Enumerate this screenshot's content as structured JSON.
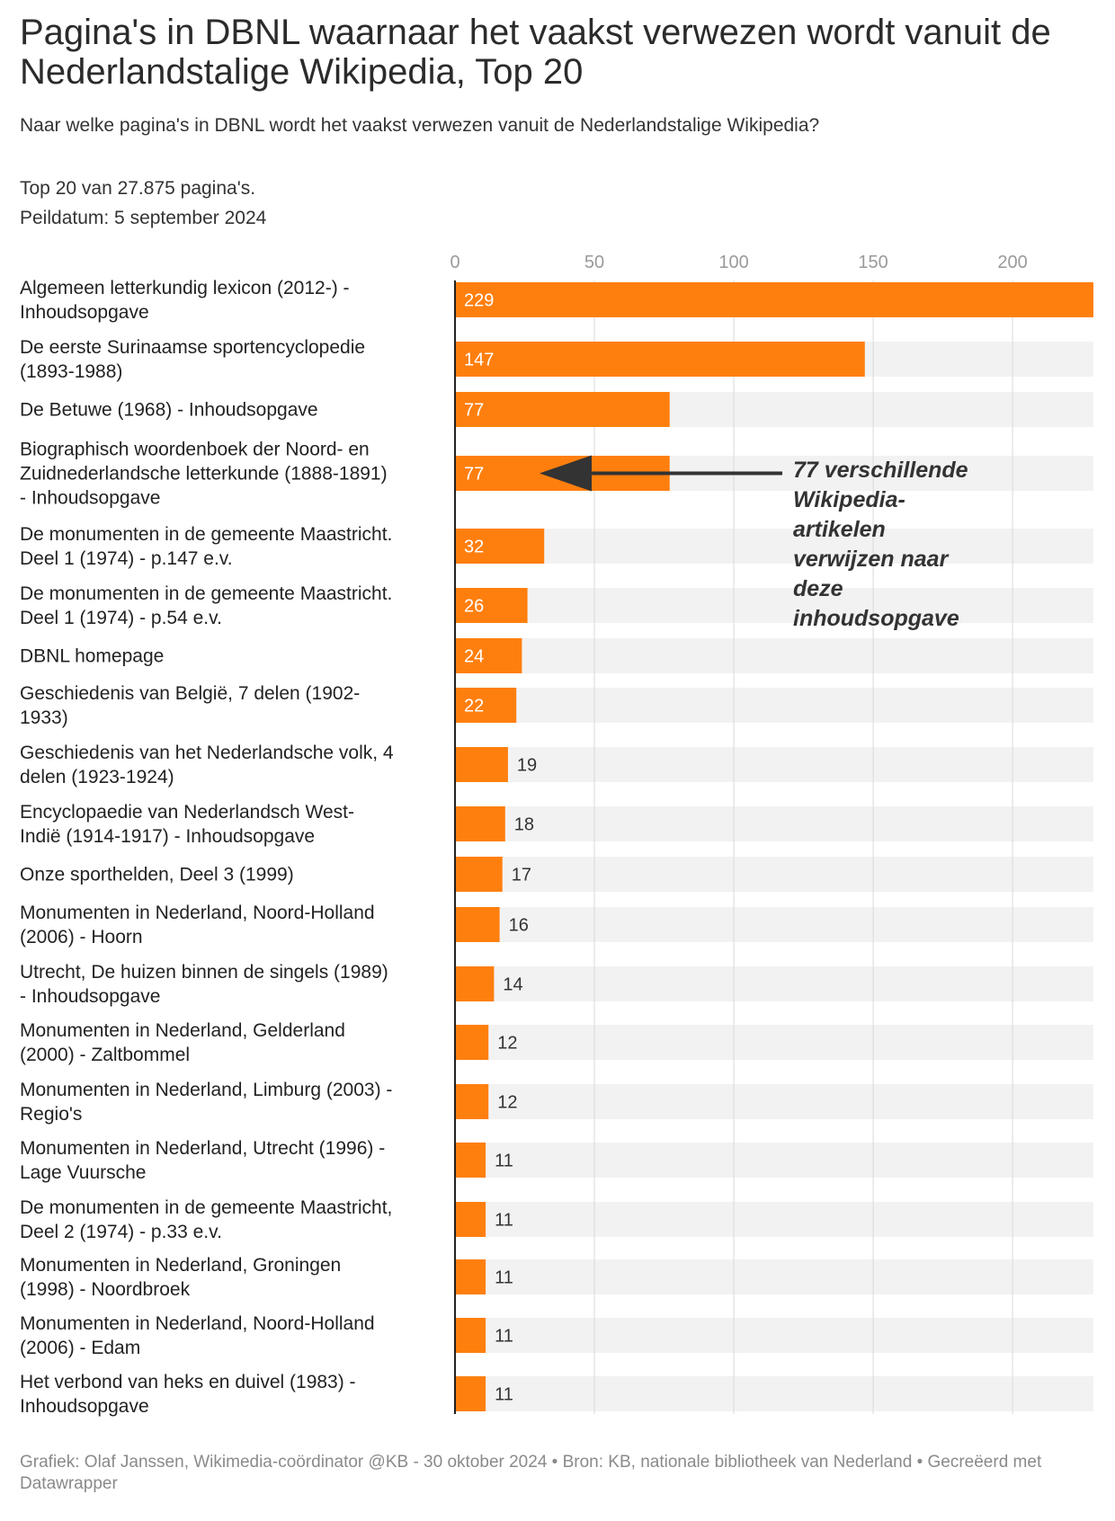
{
  "title": "Pagina's in DBNL waarnaar het vaakst verwezen wordt vanuit de Nederlandstalige Wikipedia, Top 20",
  "subtitle": "Naar welke pagina's in DBNL wordt het vaakst verwezen vanuit de Nederlandstalige Wikipedia?",
  "notes": [
    "Top 20 van 27.875 pagina's.",
    "Peildatum: 5 september 2024"
  ],
  "footer": "Grafiek: Olaf Janssen, Wikimedia-coördinator @KB - 30 oktober 2024 • Bron: KB, nationale bibliotheek van Nederland • Gecreëerd met Datawrapper",
  "colors": {
    "bar": "#ff7f0e",
    "track": "#f2f2f2",
    "grid": "#d9d9d9",
    "axis": "#222222",
    "annotation": "#333333"
  },
  "chart_data": {
    "type": "bar",
    "orientation": "horizontal",
    "xlim": [
      0,
      229
    ],
    "ticks": [
      0,
      50,
      100,
      150,
      200
    ],
    "grid": true,
    "categories": [
      "Algemeen letterkundig lexicon (2012-) - Inhoudsopgave",
      "De eerste Surinaamse sportencyclopedie (1893-1988)",
      "De Betuwe (1968) - Inhoudsopgave",
      "Biographisch woordenboek der Noord- en Zuidnederlandsche letterkunde (1888-1891) - Inhoudsopgave",
      "De monumenten in de gemeente Maastricht. Deel 1 (1974) - p.147 e.v.",
      "De monumenten in de gemeente Maastricht. Deel 1 (1974) - p.54 e.v.",
      "DBNL homepage",
      "Geschiedenis van België, 7 delen (1902-1933)",
      "Geschiedenis van het Nederlandsche volk, 4 delen (1923-1924)",
      "Encyclopaedie van Nederlandsch West-Indië (1914-1917) - Inhoudsopgave",
      "Onze sporthelden, Deel 3 (1999)",
      "Monumenten in Nederland, Noord-Holland (2006) - Hoorn",
      "Utrecht, De huizen binnen de singels (1989) - Inhoudsopgave",
      "Monumenten in Nederland, Gelderland (2000) - Zaltbommel",
      "Monumenten in Nederland, Limburg (2003) - Regio's",
      "Monumenten in Nederland, Utrecht (1996) - Lage Vuursche",
      "De monumenten in de gemeente Maastricht, Deel 2 (1974) - p.33 e.v.",
      "Monumenten in Nederland, Groningen (1998) - Noordbroek",
      "Monumenten in Nederland, Noord-Holland (2006) - Edam",
      "Het verbond van heks en duivel (1983) - Inhoudsopgave"
    ],
    "label_lines": [
      [
        "Algemeen letterkundig lexicon (2012-) -",
        "Inhoudsopgave"
      ],
      [
        "De eerste Surinaamse sportencyclopedie",
        "(1893-1988)"
      ],
      [
        "De Betuwe (1968) - Inhoudsopgave"
      ],
      [
        "Biographisch woordenboek der Noord- en",
        "Zuidnederlandsche letterkunde (1888-1891)",
        "- Inhoudsopgave"
      ],
      [
        "De monumenten in de gemeente Maastricht.",
        "Deel 1 (1974) - p.147 e.v."
      ],
      [
        "De monumenten in de gemeente Maastricht.",
        "Deel 1 (1974) - p.54 e.v."
      ],
      [
        "DBNL homepage"
      ],
      [
        "Geschiedenis van België, 7 delen (1902-",
        "1933)"
      ],
      [
        "Geschiedenis van het Nederlandsche volk, 4",
        "delen (1923-1924)"
      ],
      [
        "Encyclopaedie van Nederlandsch West-",
        "Indië (1914-1917) - Inhoudsopgave"
      ],
      [
        "Onze sporthelden, Deel 3 (1999)"
      ],
      [
        "Monumenten in Nederland, Noord-Holland",
        "(2006) - Hoorn"
      ],
      [
        "Utrecht, De huizen binnen de singels (1989)",
        "- Inhoudsopgave"
      ],
      [
        "Monumenten in Nederland, Gelderland",
        "(2000) - Zaltbommel"
      ],
      [
        "Monumenten in Nederland, Limburg (2003) -",
        "Regio's"
      ],
      [
        "Monumenten in Nederland, Utrecht (1996) -",
        "Lage Vuursche"
      ],
      [
        "De monumenten in de gemeente Maastricht,",
        "Deel 2 (1974) - p.33 e.v."
      ],
      [
        "Monumenten in Nederland, Groningen",
        "(1998) - Noordbroek"
      ],
      [
        "Monumenten in Nederland, Noord-Holland",
        "(2006) - Edam"
      ],
      [
        "Het verbond van heks en duivel (1983) -",
        "Inhoudsopgave"
      ]
    ],
    "values": [
      229,
      147,
      77,
      77,
      32,
      26,
      24,
      22,
      19,
      18,
      17,
      16,
      14,
      12,
      12,
      11,
      11,
      11,
      11,
      11
    ],
    "annotation": {
      "target_index": 3,
      "text": "77 verschillende Wikipedia-artikelen verwijzen naar deze inhoudsopgave",
      "lines": [
        "77 verschillende",
        "Wikipedia-",
        "artikelen",
        "verwijzen naar",
        "deze",
        "inhoudsopgave"
      ]
    }
  }
}
